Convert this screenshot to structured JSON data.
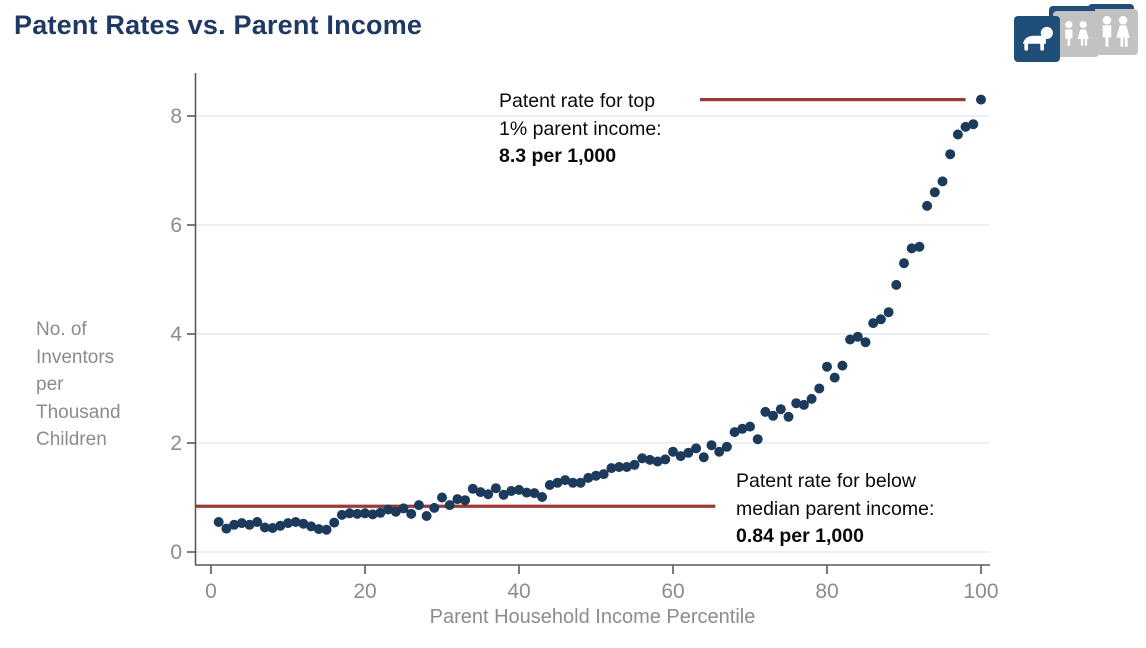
{
  "header": {
    "title": "Patent Rates vs. Parent Income",
    "age_group_toggles": [
      {
        "label": "baby",
        "active": true
      },
      {
        "label": "children",
        "active": false
      },
      {
        "label": "adults",
        "active": false
      }
    ]
  },
  "annotations": {
    "top": {
      "text": "Patent rate for top\n1% parent income:",
      "bold": "8.3 per 1,000"
    },
    "bottom": {
      "text": "Patent rate for below\nmedian parent income:",
      "bold": "0.84 per 1,000"
    }
  },
  "colors": {
    "title_navy": "#1F3864",
    "dot_navy": "#1B3A5C",
    "ref_line_red": "#9A3B38",
    "grid_line": "#E4ECF2",
    "axis_gray": "#5A5A5A",
    "label_gray": "#8C8C8C",
    "tile_active": "#1F4E79",
    "tile_inactive": "#C2C2C2"
  },
  "chart_data": {
    "type": "scatter",
    "title": "Patent Rates vs. Parent Income",
    "xlabel": "Parent Household Income Percentile",
    "ylabel": "No. of\nInventors\nper\nThousand\nChildren",
    "x_ticks": [
      0,
      20,
      40,
      60,
      80,
      100
    ],
    "y_ticks": [
      0,
      2,
      4,
      6,
      8
    ],
    "xlim": [
      0,
      102
    ],
    "ylim": [
      0,
      8.6
    ],
    "grid": "horizontal-only",
    "legend": "none",
    "x": [
      1,
      2,
      3,
      4,
      5,
      6,
      7,
      8,
      9,
      10,
      11,
      12,
      13,
      14,
      15,
      16,
      17,
      18,
      19,
      20,
      21,
      22,
      23,
      24,
      25,
      26,
      27,
      28,
      29,
      30,
      31,
      32,
      33,
      34,
      35,
      36,
      37,
      38,
      39,
      40,
      41,
      42,
      43,
      44,
      45,
      46,
      47,
      48,
      49,
      50,
      51,
      52,
      53,
      54,
      55,
      56,
      57,
      58,
      59,
      60,
      61,
      62,
      63,
      64,
      65,
      66,
      67,
      68,
      69,
      70,
      71,
      72,
      73,
      74,
      75,
      76,
      77,
      78,
      79,
      80,
      81,
      82,
      83,
      84,
      85,
      86,
      87,
      88,
      89,
      90,
      91,
      92,
      93,
      94,
      95,
      96,
      97,
      98,
      99,
      100
    ],
    "y": [
      0.55,
      0.43,
      0.5,
      0.53,
      0.5,
      0.55,
      0.45,
      0.44,
      0.48,
      0.53,
      0.55,
      0.52,
      0.47,
      0.42,
      0.41,
      0.54,
      0.68,
      0.71,
      0.7,
      0.71,
      0.69,
      0.72,
      0.78,
      0.74,
      0.8,
      0.7,
      0.86,
      0.66,
      0.81,
      1.0,
      0.86,
      0.97,
      0.95,
      1.16,
      1.1,
      1.06,
      1.17,
      1.05,
      1.12,
      1.14,
      1.09,
      1.08,
      1.01,
      1.23,
      1.27,
      1.32,
      1.27,
      1.27,
      1.36,
      1.4,
      1.43,
      1.54,
      1.56,
      1.56,
      1.6,
      1.72,
      1.69,
      1.66,
      1.7,
      1.84,
      1.76,
      1.82,
      1.9,
      1.74,
      1.96,
      1.84,
      1.93,
      2.2,
      2.26,
      2.3,
      2.07,
      2.57,
      2.5,
      2.62,
      2.48,
      2.73,
      2.7,
      2.81,
      3.0,
      3.4,
      3.2,
      3.42,
      3.9,
      3.95,
      3.85,
      4.2,
      4.27,
      4.4,
      4.9,
      5.3,
      5.57,
      5.6,
      6.35,
      6.6,
      6.8,
      7.3,
      7.66,
      7.8,
      7.85,
      8.3
    ],
    "ref_lines": [
      {
        "name": "top-1-percent",
        "value": 8.3,
        "x_start": 63.5,
        "x_end": 98,
        "label": "Patent rate for top 1% parent income: 8.3 per 1,000"
      },
      {
        "name": "below-median",
        "value": 0.84,
        "x_start": 0,
        "x_end": 65.5,
        "label": "Patent rate for below median parent income: 0.84 per 1,000"
      }
    ]
  }
}
